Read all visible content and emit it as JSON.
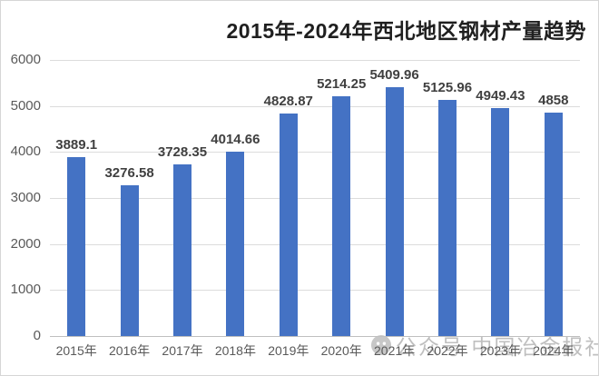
{
  "title": "2015年-2024年西北地区钢材产量趋势",
  "watermark": {
    "icon": "wechat-icon",
    "text": "公众号 中国冶金报社"
  },
  "colors": {
    "bar": "#4472C4",
    "gridline": "#DCDCDC",
    "axis_line": "#BFBFBF",
    "axis_label": "#595959",
    "data_label": "#404040",
    "title": "#1F1F1F",
    "watermark": "#8C8C8C",
    "background": "#FFFFFF"
  },
  "chart_data": {
    "type": "bar",
    "title": "2015年-2024年西北地区钢材产量趋势",
    "categories": [
      "2015年",
      "2016年",
      "2017年",
      "2018年",
      "2019年",
      "2020年",
      "2021年",
      "2022年",
      "2023年",
      "2024年"
    ],
    "values": [
      3889.1,
      3276.58,
      3728.35,
      4014.66,
      4828.87,
      5214.25,
      5409.96,
      5125.96,
      4949.43,
      4858
    ],
    "data_labels": [
      "3889.1",
      "3276.58",
      "3728.35",
      "4014.66",
      "4828.87",
      "5214.25",
      "5409.96",
      "5125.96",
      "4949.43",
      "4858"
    ],
    "xlabel": "",
    "ylabel": "",
    "ylim": [
      0,
      6000
    ],
    "ytick_step": 1000,
    "yticks": [
      "0",
      "1000",
      "2000",
      "3000",
      "4000",
      "5000",
      "6000"
    ],
    "grid": true,
    "legend": false
  }
}
